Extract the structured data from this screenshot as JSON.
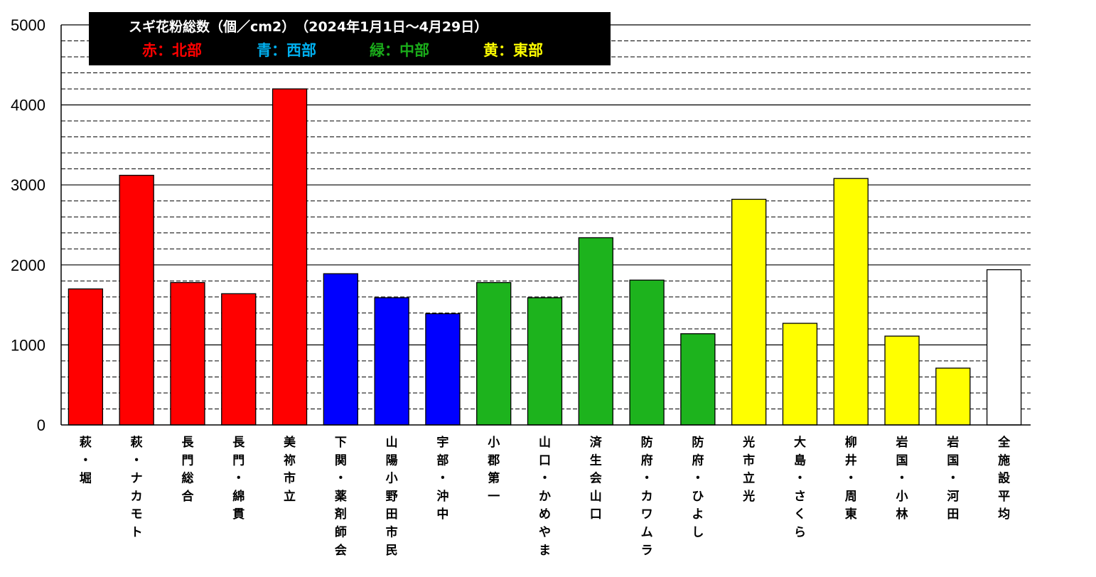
{
  "chart_data": {
    "type": "bar",
    "title": "スギ花粉総数（個／cm2）　（2024年1月1日～4月29日）",
    "ylim": [
      0,
      5000
    ],
    "yticks": [
      0,
      1000,
      2000,
      3000,
      4000,
      5000
    ],
    "minor_gridline_step": 200,
    "grid": true,
    "legend": [
      {
        "label": "赤：北部",
        "color": "#ff0000"
      },
      {
        "label": "青：西部",
        "color": "#00b0f0"
      },
      {
        "label": "緑：中部",
        "color": "#1aac1a"
      },
      {
        "label": "黄：東部",
        "color": "#ffff00"
      }
    ],
    "colors": {
      "north": "#ff0000",
      "west": "#0000ff",
      "central": "#1db31d",
      "east": "#ffff00",
      "average": "#ffffff"
    },
    "categories": [
      "萩・堀",
      "萩・ナカモト",
      "長門総合",
      "長門・綿貫",
      "美祢市立",
      "下関・薬剤師会",
      "山陽小野田市民",
      "宇部・沖中",
      "小郡第一",
      "山口・かめやま",
      "済生会山口",
      "防府・カワムラ",
      "防府・ひよし",
      "光市立光",
      "大島・さくら",
      "柳井・周東",
      "岩国・小林",
      "岩国・河田",
      "全施設平均"
    ],
    "values": [
      1700,
      3120,
      1780,
      1640,
      4200,
      1890,
      1590,
      1390,
      1780,
      1590,
      2340,
      1810,
      1140,
      2820,
      1270,
      3080,
      1110,
      710,
      1940
    ],
    "bar_colors": [
      "north",
      "north",
      "north",
      "north",
      "north",
      "west",
      "west",
      "west",
      "central",
      "central",
      "central",
      "central",
      "central",
      "east",
      "east",
      "east",
      "east",
      "east",
      "average"
    ]
  }
}
